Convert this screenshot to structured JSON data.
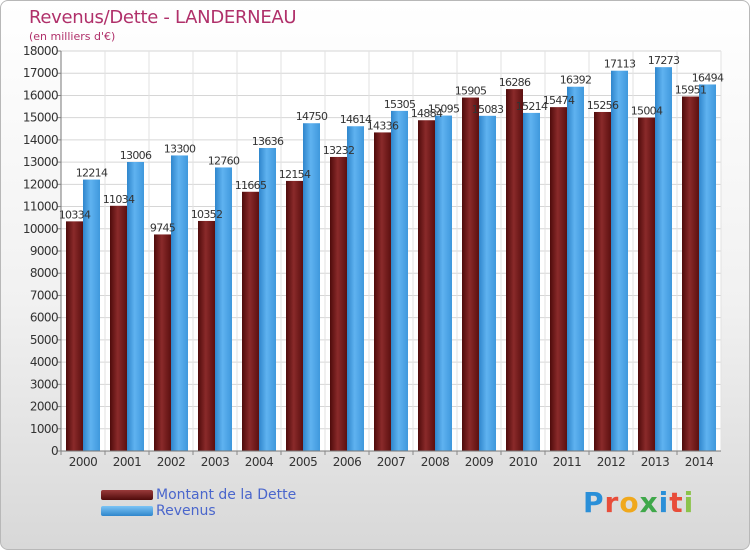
{
  "header": {
    "title": "Revenus/Dette - LANDERNEAU",
    "subtitle": "(en milliers d'€)"
  },
  "legend": {
    "items": [
      {
        "label": "Montant de la Dette",
        "color": "#7a1a1a"
      },
      {
        "label": "Revenus",
        "color": "#4aa3e8"
      }
    ]
  },
  "brand": {
    "letters": [
      "P",
      "r",
      "o",
      "x",
      "i",
      "t",
      "i"
    ],
    "colors": [
      "#2a8fd8",
      "#e84d3a",
      "#f0a81c",
      "#3fa84a",
      "#2a8fd8",
      "#e84d3a",
      "#8bc34a"
    ]
  },
  "chart_data": {
    "type": "bar",
    "categories": [
      "2000",
      "2001",
      "2002",
      "2003",
      "2004",
      "2005",
      "2006",
      "2007",
      "2008",
      "2009",
      "2010",
      "2011",
      "2012",
      "2013",
      "2014"
    ],
    "series": [
      {
        "name": "Montant de la Dette",
        "color": "#7a1a1a",
        "values": [
          10334,
          11034,
          9745,
          10352,
          11665,
          12154,
          13232,
          14336,
          14884,
          15905,
          16286,
          15474,
          15256,
          15004,
          15951
        ],
        "labels": [
          "10334",
          "11034",
          "9745",
          "10352",
          "11665",
          "12154",
          "13232",
          "14336",
          "14884",
          "15905",
          "16286",
          "15474",
          "15256",
          "15004",
          "15951"
        ]
      },
      {
        "name": "Revenus",
        "color": "#4aa3e8",
        "values": [
          12214,
          13006,
          13300,
          12760,
          13636,
          14750,
          14614,
          15305,
          15095,
          15083,
          15214,
          16392,
          17113,
          17273,
          16494
        ],
        "labels": [
          "12214",
          "13006",
          "13300",
          "12760",
          "13636",
          "14750",
          "14614",
          "15305",
          "15095",
          "15083",
          "15214",
          "16392",
          "17113",
          "17273",
          "16494"
        ]
      }
    ],
    "ylim": [
      0,
      18000
    ],
    "yticks": [
      0,
      1000,
      2000,
      3000,
      4000,
      5000,
      6000,
      7000,
      8000,
      9000,
      10000,
      11000,
      12000,
      13000,
      14000,
      15000,
      16000,
      17000,
      18000
    ],
    "xlabel": "",
    "ylabel": "",
    "grid": true
  }
}
